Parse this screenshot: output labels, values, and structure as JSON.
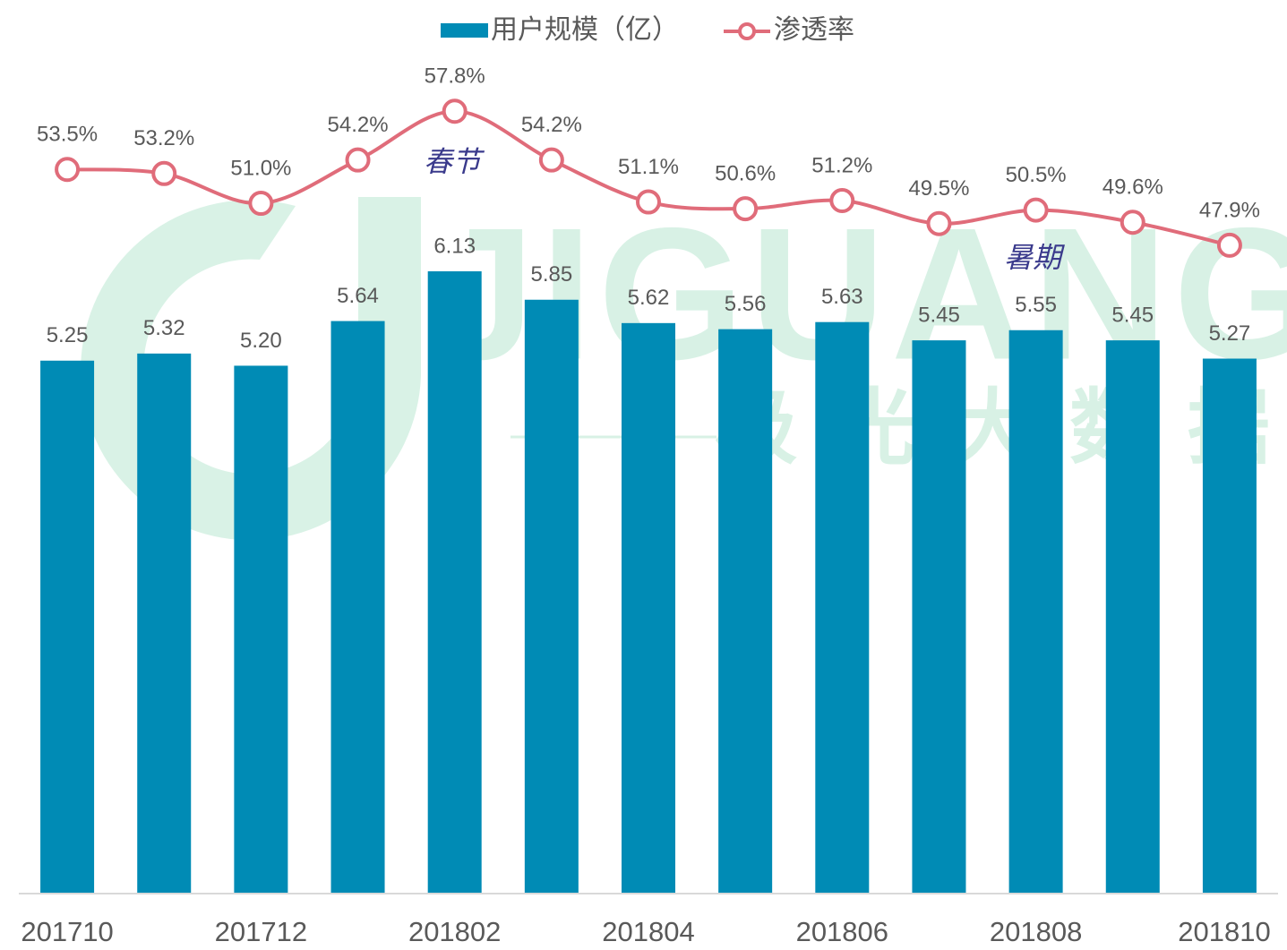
{
  "chart_data": {
    "type": "bar",
    "categories": [
      "201710",
      null,
      "201712",
      null,
      "201802",
      null,
      "201804",
      null,
      "201806",
      null,
      "201808",
      null,
      "201810"
    ],
    "series": [
      {
        "name": "用户规模（亿）",
        "type": "bar",
        "color": "#008bb5",
        "values": [
          5.25,
          5.32,
          5.2,
          5.64,
          6.13,
          5.85,
          5.62,
          5.56,
          5.63,
          5.45,
          5.55,
          5.45,
          5.27
        ],
        "value_labels": [
          "5.25",
          "5.32",
          "5.20",
          "5.64",
          "6.13",
          "5.85",
          "5.62",
          "5.56",
          "5.63",
          "5.45",
          "5.55",
          "5.45",
          "5.27"
        ]
      },
      {
        "name": "渗透率",
        "type": "line",
        "axis": "y2",
        "color": "#e06c7a",
        "values": [
          53.5,
          53.2,
          51.0,
          54.2,
          57.8,
          54.2,
          51.1,
          50.6,
          51.2,
          49.5,
          50.5,
          49.6,
          47.9
        ],
        "value_labels": [
          "53.5%",
          "53.2%",
          "51.0%",
          "54.2%",
          "57.8%",
          "54.2%",
          "51.1%",
          "50.6%",
          "51.2%",
          "49.5%",
          "50.5%",
          "49.6%",
          "47.9%"
        ]
      }
    ],
    "ylim": [
      0,
      8
    ],
    "y2lim": [
      0,
      60
    ],
    "legend": "top",
    "annotations": [
      "春节",
      "暑期"
    ],
    "watermark": [
      "JIGUANG",
      "极光大数据"
    ]
  }
}
